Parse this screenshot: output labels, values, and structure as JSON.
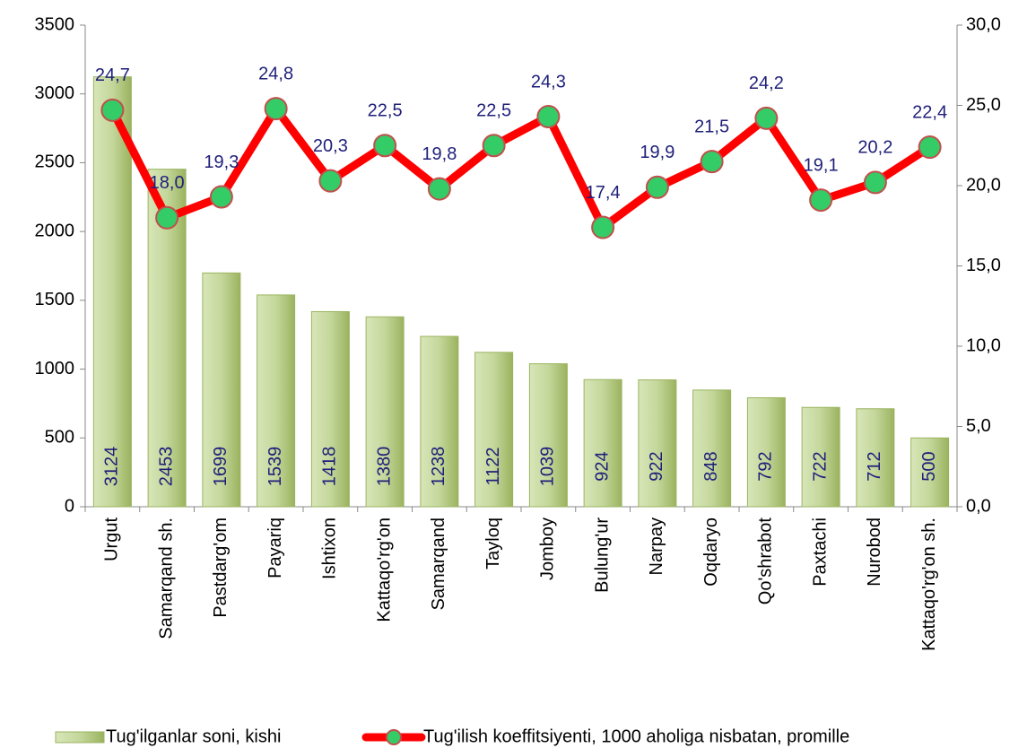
{
  "chart_data": {
    "type": "bar",
    "categories": [
      "Urgut",
      "Samarqand sh.",
      "Pastdarg'om",
      "Payariq",
      "Ishtixon",
      "Kattaqo'rg'on",
      "Samarqand",
      "Tayloq",
      "Jomboy",
      "Bulung'ur",
      "Narpay",
      "Oqdaryo",
      "Qo'shrabot",
      "Paxtachi",
      "Nurobod",
      "Kattaqo'rg'on sh."
    ],
    "series": [
      {
        "name": "Tug'ilganlar soni, kishi",
        "type": "bar",
        "color": "#c4d79b",
        "values": [
          3124,
          2453,
          1699,
          1539,
          1418,
          1380,
          1238,
          1122,
          1039,
          924,
          922,
          848,
          792,
          722,
          712,
          500
        ]
      },
      {
        "name": "Tug'ilish koeffitsiyenti, 1000 aholiga nisbatan, promille",
        "type": "line",
        "axis": "y2",
        "color": "#ff0000",
        "marker_color": "#33cc66",
        "values": [
          24.7,
          18.0,
          19.3,
          24.8,
          20.3,
          22.5,
          19.8,
          22.5,
          24.3,
          17.4,
          19.9,
          21.5,
          24.2,
          19.1,
          20.2,
          22.4
        ],
        "value_labels": [
          "24,7",
          "18,0",
          "19,3",
          "24,8",
          "20,3",
          "22,5",
          "19,8",
          "22,5",
          "24,3",
          "17,4",
          "19,9",
          "21,5",
          "24,2",
          "19,1",
          "20,2",
          "22,4"
        ]
      }
    ],
    "ylim": [
      0,
      3500
    ],
    "yticks": [
      0,
      500,
      1000,
      1500,
      2000,
      2500,
      3000,
      3500
    ],
    "y2lim": [
      0,
      30
    ],
    "y2ticks": [
      {
        "value": 0,
        "label": "0,0"
      },
      {
        "value": 5,
        "label": "5,0"
      },
      {
        "value": 10,
        "label": "10,0"
      },
      {
        "value": 15,
        "label": "15,0"
      },
      {
        "value": 20,
        "label": "20,0"
      },
      {
        "value": 25,
        "label": "25,0"
      },
      {
        "value": 30,
        "label": "30,0"
      }
    ],
    "legend": "bottom"
  }
}
